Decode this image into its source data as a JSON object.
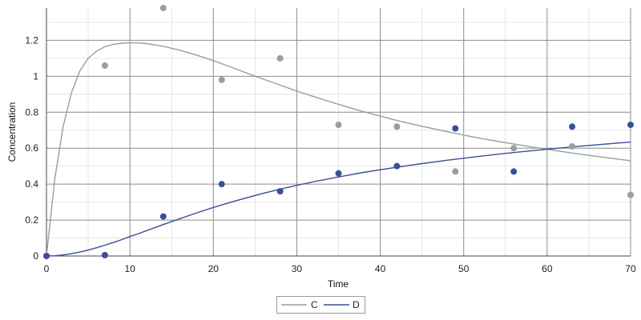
{
  "chart_data": {
    "type": "line",
    "xlabel": "Time",
    "ylabel": "Concentration",
    "xlim": [
      0,
      70
    ],
    "ylim": [
      0,
      1.38
    ],
    "x_ticks": [
      0,
      10,
      20,
      30,
      40,
      50,
      60,
      70
    ],
    "x_tick_labels": [
      "0",
      "10",
      "20",
      "30",
      "40",
      "50",
      "60",
      "70"
    ],
    "y_ticks": [
      0,
      0.2,
      0.4,
      0.6,
      0.8,
      1,
      1.2
    ],
    "y_tick_labels": [
      "0",
      "0.2",
      "0.4",
      "0.6",
      "0.8",
      "1",
      "1.2"
    ],
    "grid": true,
    "legend_position": "bottom-center",
    "series": [
      {
        "name": "C",
        "color": "#94a09e",
        "curve": {
          "x": [
            0,
            1,
            2,
            3,
            4,
            5,
            6,
            7,
            8,
            9,
            10,
            11,
            12,
            14,
            16,
            18,
            20,
            22,
            24,
            26,
            28,
            30,
            32,
            35,
            38,
            40,
            42,
            45,
            48,
            50,
            52,
            55,
            58,
            60,
            63,
            66,
            70
          ],
          "y": [
            0,
            0.43,
            0.72,
            0.91,
            1.03,
            1.1,
            1.14,
            1.165,
            1.178,
            1.184,
            1.186,
            1.186,
            1.182,
            1.167,
            1.145,
            1.118,
            1.087,
            1.053,
            1.018,
            0.984,
            0.951,
            0.918,
            0.887,
            0.844,
            0.803,
            0.778,
            0.754,
            0.722,
            0.692,
            0.673,
            0.655,
            0.631,
            0.608,
            0.594,
            0.573,
            0.554,
            0.53
          ]
        },
        "points": {
          "x": [
            0,
            7,
            14,
            21,
            28,
            35,
            42,
            49,
            56,
            63,
            70
          ],
          "y": [
            0,
            1.06,
            1.38,
            0.98,
            1.1,
            0.73,
            0.72,
            0.47,
            0.6,
            0.61,
            0.34
          ]
        }
      },
      {
        "name": "D",
        "color": "#3a4f96",
        "curve": {
          "x": [
            0,
            1,
            2,
            3,
            4,
            5,
            6,
            7,
            8,
            9,
            10,
            11,
            12,
            14,
            16,
            18,
            20,
            22,
            24,
            26,
            28,
            30,
            32,
            35,
            38,
            40,
            42,
            45,
            48,
            50,
            52,
            55,
            58,
            60,
            63,
            66,
            70
          ],
          "y": [
            0,
            0.0015,
            0.006,
            0.013,
            0.022,
            0.033,
            0.046,
            0.06,
            0.075,
            0.091,
            0.108,
            0.124,
            0.141,
            0.175,
            0.208,
            0.24,
            0.27,
            0.298,
            0.324,
            0.349,
            0.372,
            0.393,
            0.413,
            0.44,
            0.465,
            0.48,
            0.494,
            0.514,
            0.533,
            0.544,
            0.555,
            0.571,
            0.585,
            0.594,
            0.607,
            0.619,
            0.634
          ]
        },
        "points": {
          "x": [
            0,
            7,
            14,
            21,
            28,
            35,
            42,
            49,
            56,
            63,
            70
          ],
          "y": [
            0,
            0.005,
            0.22,
            0.4,
            0.36,
            0.46,
            0.5,
            0.71,
            0.47,
            0.72,
            0.73
          ]
        }
      }
    ]
  }
}
